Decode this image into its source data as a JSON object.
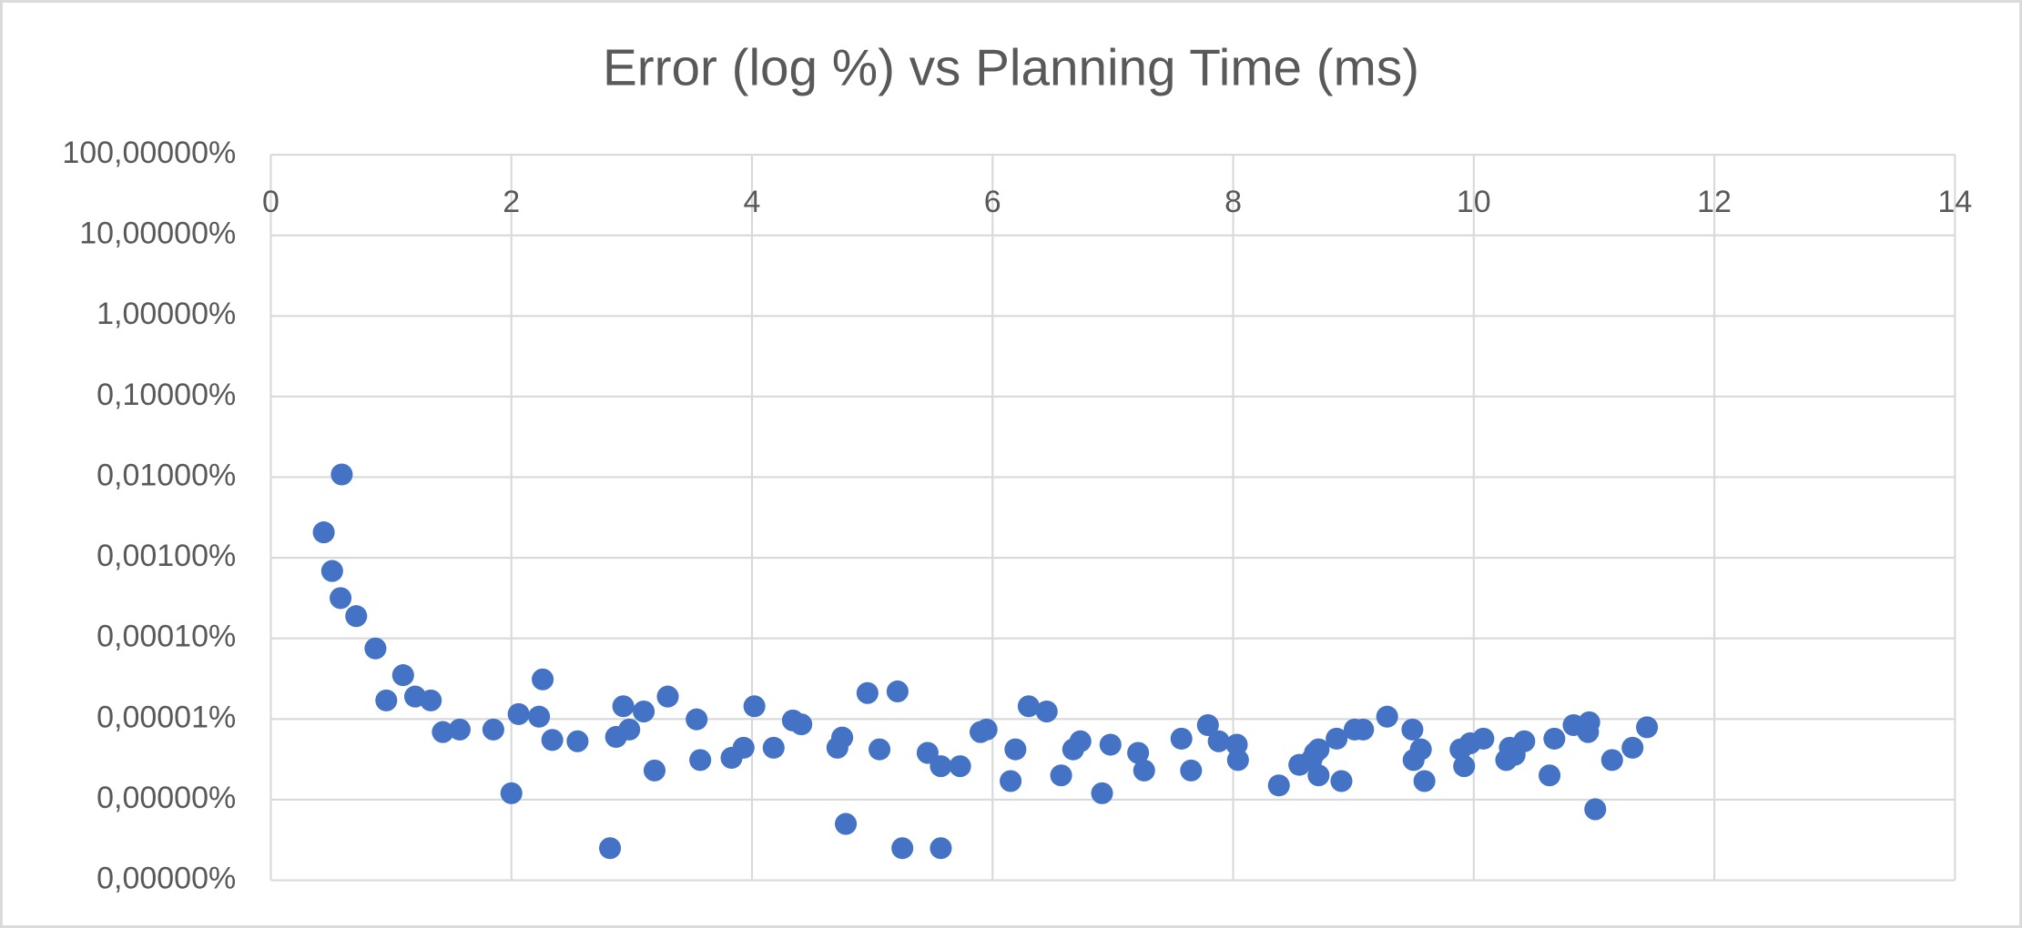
{
  "chart_data": {
    "type": "scatter",
    "title": "Error (log %) vs Planning Time (ms)",
    "color": "#4472c4",
    "log_y": true,
    "grid": true,
    "xlim": [
      0,
      14
    ],
    "xticks": [
      0,
      2,
      4,
      6,
      8,
      10,
      12,
      14
    ],
    "ylim": [
      1e-07,
      100
    ],
    "yticks": [
      {
        "value": 100,
        "label": "100,00000%"
      },
      {
        "value": 10,
        "label": "10,00000%"
      },
      {
        "value": 1,
        "label": "1,00000%"
      },
      {
        "value": 0.1,
        "label": "0,10000%"
      },
      {
        "value": 0.01,
        "label": "0,01000%"
      },
      {
        "value": 0.001,
        "label": "0,00100%"
      },
      {
        "value": 0.0001,
        "label": "0,00010%"
      },
      {
        "value": 1e-05,
        "label": "0,00001%"
      },
      {
        "value": 1e-06,
        "label": "0,00000%"
      },
      {
        "value": 1e-07,
        "label": "0,00000%"
      }
    ],
    "x": [
      0.44,
      0.59,
      0.51,
      0.58,
      0.71,
      0.87,
      0.96,
      1.1,
      1.2,
      1.33,
      1.43,
      1.57,
      1.85,
      2.0,
      2.06,
      2.23,
      2.26,
      2.34,
      2.55,
      2.82,
      2.87,
      2.93,
      2.98,
      3.1,
      3.19,
      3.3,
      3.54,
      3.57,
      3.83,
      3.93,
      4.02,
      4.18,
      4.34,
      4.41,
      4.71,
      4.75,
      4.78,
      4.96,
      5.06,
      5.21,
      5.25,
      5.46,
      5.57,
      5.57,
      5.73,
      5.9,
      5.95,
      6.15,
      6.19,
      6.3,
      6.45,
      6.57,
      6.67,
      6.73,
      6.91,
      6.98,
      7.21,
      7.26,
      7.57,
      7.65,
      7.79,
      7.88,
      8.03,
      8.04,
      8.38,
      8.55,
      8.65,
      8.68,
      8.71,
      8.71,
      8.86,
      8.9,
      9.01,
      9.08,
      9.28,
      9.49,
      9.5,
      9.56,
      9.59,
      9.89,
      9.92,
      9.97,
      10.08,
      10.27,
      10.3,
      10.34,
      10.42,
      10.63,
      10.67,
      10.83,
      10.96,
      10.95,
      11.01,
      11.15,
      11.32,
      11.44
    ],
    "values": [
      0.00207,
      0.0108,
      0.000686,
      0.000316,
      0.000189,
      7.5e-05,
      1.7e-05,
      3.5e-05,
      1.9e-05,
      1.7e-05,
      6.9e-06,
      7.4e-06,
      7.4e-06,
      1.2e-06,
      1.15e-05,
      1.07e-05,
      3.1e-05,
      5.5e-06,
      5.3e-06,
      2.5e-07,
      6e-06,
      1.44e-05,
      7.4e-06,
      1.24e-05,
      2.3e-06,
      1.9e-05,
      9.9e-06,
      3.1e-06,
      3.3e-06,
      4.4e-06,
      1.44e-05,
      4.4e-06,
      9.6e-06,
      8.6e-06,
      4.4e-06,
      5.9e-06,
      5e-07,
      2.1e-05,
      4.2e-06,
      2.2e-05,
      2.5e-07,
      3.8e-06,
      2.6e-06,
      2.5e-07,
      2.6e-06,
      6.9e-06,
      7.4e-06,
      1.7e-06,
      4.2e-06,
      1.44e-05,
      1.24e-05,
      2e-06,
      4.2e-06,
      5.3e-06,
      1.2e-06,
      4.8e-06,
      3.8e-06,
      2.3e-06,
      5.7e-06,
      2.3e-06,
      8.4e-06,
      5.3e-06,
      4.8e-06,
      3.1e-06,
      1.5e-06,
      2.7e-06,
      3.1e-06,
      3.8e-06,
      4.2e-06,
      2e-06,
      5.7e-06,
      1.7e-06,
      7.4e-06,
      7.4e-06,
      1.07e-05,
      7.4e-06,
      3.1e-06,
      4.2e-06,
      1.7e-06,
      4.2e-06,
      2.6e-06,
      5e-06,
      5.7e-06,
      3.1e-06,
      4.4e-06,
      3.6e-06,
      5.3e-06,
      2e-06,
      5.7e-06,
      8.4e-06,
      9.1e-06,
      6.9e-06,
      7.6e-07,
      3.1e-06,
      4.4e-06,
      7.9e-06
    ]
  }
}
